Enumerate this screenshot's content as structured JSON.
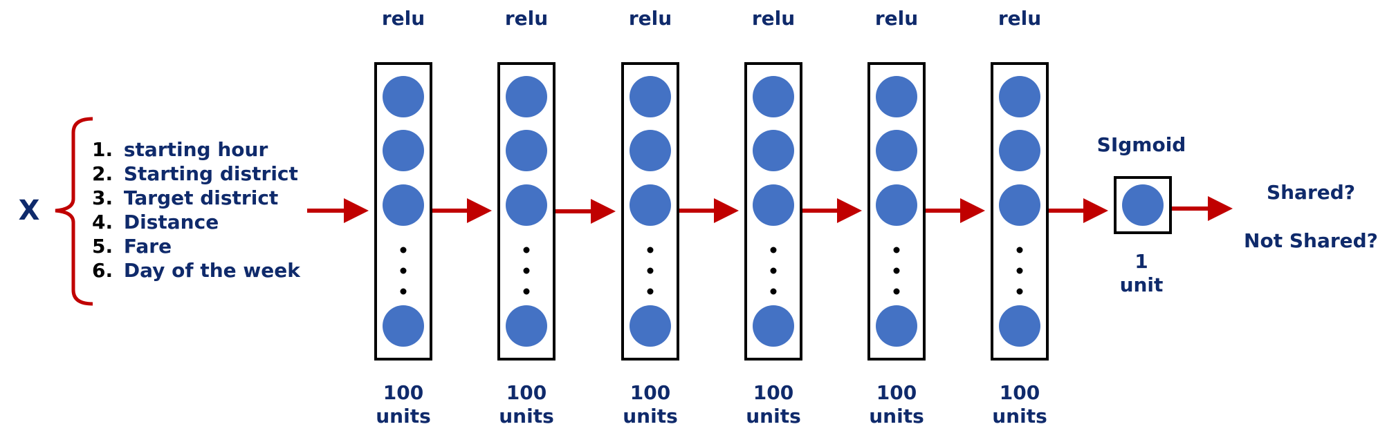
{
  "input": {
    "symbol": "X",
    "features": [
      {
        "num": "1.",
        "label": "starting hour"
      },
      {
        "num": "2.",
        "label": "Starting district"
      },
      {
        "num": "3.",
        "label": "Target district"
      },
      {
        "num": "4.",
        "label": "Distance"
      },
      {
        "num": "5.",
        "label": "Fare"
      },
      {
        "num": "6.",
        "label": "Day of the week"
      }
    ]
  },
  "hidden_layers": [
    {
      "activation": "relu",
      "units_count": "100",
      "units_word": "units"
    },
    {
      "activation": "relu",
      "units_count": "100",
      "units_word": "units"
    },
    {
      "activation": "relu",
      "units_count": "100",
      "units_word": "units"
    },
    {
      "activation": "relu",
      "units_count": "100",
      "units_word": "units"
    },
    {
      "activation": "relu",
      "units_count": "100",
      "units_word": "units"
    },
    {
      "activation": "relu",
      "units_count": "100",
      "units_word": "units"
    }
  ],
  "output_layer": {
    "activation": "SIgmoid",
    "units_count": "1",
    "units_word": "unit"
  },
  "outputs": [
    "Shared?",
    "Not Shared?"
  ],
  "colors": {
    "arrow": "#c00000",
    "neuron": "#4472c4",
    "text": "#0f2a6b",
    "brace": "#c00000"
  }
}
